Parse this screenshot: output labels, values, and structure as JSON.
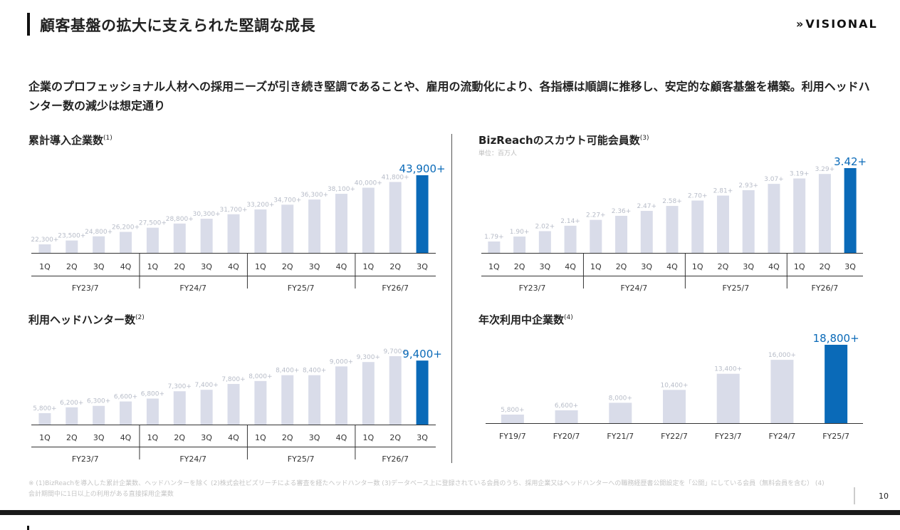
{
  "header": {
    "title": "顧客基盤の拡大に支えられた堅調な成長",
    "logo_text": "VISIONAL",
    "logo_chevrons": "»"
  },
  "lead": {
    "text": "企業のプロフェッショナル人材への採用ニーズが引き続き堅調であることや、雇用の流動化により、各指標は順調に推移し、安定的な顧客基盤を構築。利用ヘッドハンター数の減少は想定通り"
  },
  "colors": {
    "accent": "#0a6ab8",
    "bar": "#d9dce9",
    "label_light": "#b7bcc8"
  },
  "footnote": "※ (1)BizReachを導入した累計企業数、ヘッドハンターを除く (2)株式会社ビズリーチによる審査を経たヘッドハンター数 (3)データベース上に登録されている会員のうち、採用企業又はヘッドハンターへの職務経歴書公開設定を「公開」にしている会員（無料会員を含む） (4)会計期間中に1日以上の利用がある直接採用企業数",
  "page_number": "10",
  "chart_data": [
    {
      "type": "bar",
      "title": "累計導入企業数",
      "note_mark": "(1)",
      "unit": "",
      "categories": [
        "1Q",
        "2Q",
        "3Q",
        "4Q",
        "1Q",
        "2Q",
        "3Q",
        "4Q",
        "1Q",
        "2Q",
        "3Q",
        "4Q",
        "1Q",
        "2Q",
        "3Q"
      ],
      "groups": [
        {
          "label": "FY23/7",
          "count": 4
        },
        {
          "label": "FY24/7",
          "count": 4
        },
        {
          "label": "FY25/7",
          "count": 4
        },
        {
          "label": "FY26/7",
          "count": 3
        }
      ],
      "values": [
        22300,
        23500,
        24800,
        26200,
        27500,
        28800,
        30300,
        31700,
        33200,
        34700,
        36300,
        38100,
        40000,
        41800,
        43900
      ],
      "labels": [
        "22,300+",
        "23,500+",
        "24,800+",
        "26,200+",
        "27,500+",
        "28,800+",
        "30,300+",
        "31,700+",
        "33,200+",
        "34,700+",
        "36,300+",
        "38,100+",
        "40,000+",
        "41,800+",
        "43,900+"
      ],
      "highlight_index": 14
    },
    {
      "type": "bar",
      "title": "BizReachのスカウト可能会員数",
      "note_mark": "(3)",
      "unit": "単位：百万人",
      "categories": [
        "1Q",
        "2Q",
        "3Q",
        "4Q",
        "1Q",
        "2Q",
        "3Q",
        "4Q",
        "1Q",
        "2Q",
        "3Q",
        "4Q",
        "1Q",
        "2Q",
        "3Q"
      ],
      "groups": [
        {
          "label": "FY23/7",
          "count": 4
        },
        {
          "label": "FY24/7",
          "count": 4
        },
        {
          "label": "FY25/7",
          "count": 4
        },
        {
          "label": "FY26/7",
          "count": 3
        }
      ],
      "values": [
        1.79,
        1.9,
        2.02,
        2.14,
        2.27,
        2.36,
        2.47,
        2.58,
        2.7,
        2.81,
        2.93,
        3.07,
        3.19,
        3.29,
        3.42
      ],
      "labels": [
        "1.79+",
        "1.90+",
        "2.02+",
        "2.14+",
        "2.27+",
        "2.36+",
        "2.47+",
        "2.58+",
        "2.70+",
        "2.81+",
        "2.93+",
        "3.07+",
        "3.19+",
        "3.29+",
        "3.42+"
      ],
      "highlight_index": 14
    },
    {
      "type": "bar",
      "title": "利用ヘッドハンター数",
      "note_mark": "(2)",
      "unit": "",
      "categories": [
        "1Q",
        "2Q",
        "3Q",
        "4Q",
        "1Q",
        "2Q",
        "3Q",
        "4Q",
        "1Q",
        "2Q",
        "3Q",
        "4Q",
        "1Q",
        "2Q",
        "3Q"
      ],
      "groups": [
        {
          "label": "FY23/7",
          "count": 4
        },
        {
          "label": "FY24/7",
          "count": 4
        },
        {
          "label": "FY25/7",
          "count": 4
        },
        {
          "label": "FY26/7",
          "count": 3
        }
      ],
      "values": [
        5800,
        6200,
        6300,
        6600,
        6800,
        7300,
        7400,
        7800,
        8000,
        8400,
        8400,
        9000,
        9300,
        9700,
        9400
      ],
      "labels": [
        "5,800+",
        "6,200+",
        "6,300+",
        "6,600+",
        "6,800+",
        "7,300+",
        "7,400+",
        "7,800+",
        "8,000+",
        "8,400+",
        "8,400+",
        "9,000+",
        "9,300+",
        "9,700+",
        "9,400+"
      ],
      "highlight_index": 14
    },
    {
      "type": "bar",
      "title": "年次利用中企業数",
      "note_mark": "(4)",
      "unit": "",
      "categories": [
        "FY19/7",
        "FY20/7",
        "FY21/7",
        "FY22/7",
        "FY23/7",
        "FY24/7",
        "FY25/7"
      ],
      "groups": [],
      "values": [
        5800,
        6600,
        8000,
        10400,
        13400,
        16000,
        18800
      ],
      "labels": [
        "5,800+",
        "6,600+",
        "8,000+",
        "10,400+",
        "13,400+",
        "16,000+",
        "18,800+"
      ],
      "highlight_index": 6
    }
  ]
}
